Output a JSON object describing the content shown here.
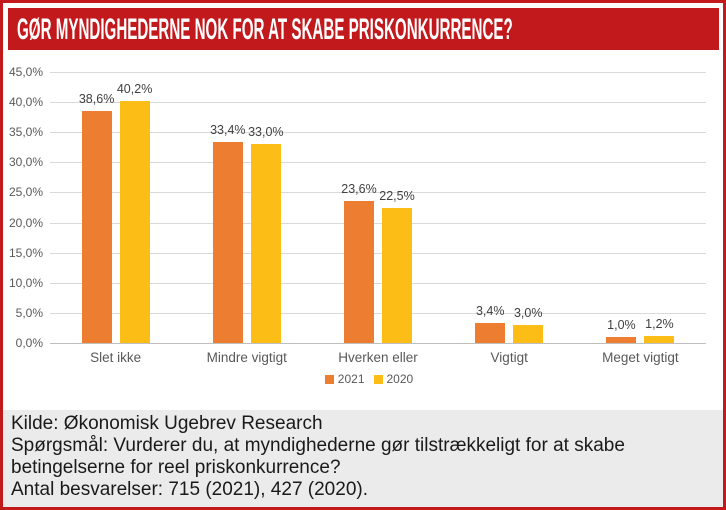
{
  "title": "GØR MYNDIGHEDERNE NOK FOR AT SKABE PRISKONKURRENCE?",
  "colors": {
    "banner_red": "#C2191D",
    "series_2021_orange": "#ED7D31",
    "series_2020_yellow": "#FBBD16"
  },
  "chart_data": {
    "type": "bar",
    "categories": [
      "Slet ikke",
      "Mindre vigtigt",
      "Hverken eller",
      "Vigtigt",
      "Meget vigtigt"
    ],
    "series": [
      {
        "name": "2021",
        "color": "#ED7D31",
        "values": [
          38.6,
          33.4,
          23.6,
          3.4,
          1.0
        ],
        "labels": [
          "38,6%",
          "33,4%",
          "23,6%",
          "3,4%",
          "1,0%"
        ]
      },
      {
        "name": "2020",
        "color": "#FBBD16",
        "values": [
          40.2,
          33.0,
          22.5,
          3.0,
          1.2
        ],
        "labels": [
          "40,2%",
          "33,0%",
          "22,5%",
          "3,0%",
          "1,2%"
        ]
      }
    ],
    "ylim": [
      0,
      45
    ],
    "ytick_step": 5,
    "ytick_labels": [
      "0,0%",
      "5,0%",
      "10,0%",
      "15,0%",
      "20,0%",
      "25,0%",
      "30,0%",
      "35,0%",
      "40,0%",
      "45,0%"
    ],
    "grid": true,
    "legend_position": "bottom"
  },
  "footer": {
    "lines": [
      "Kilde: Økonomisk Ugebrev Research",
      "Spørgsmål: Vurderer du, at myndighederne gør tilstrækkeligt for at skabe betingelserne for reel priskonkurrence?",
      "Antal besvarelser: 715 (2021), 427 (2020)."
    ]
  }
}
